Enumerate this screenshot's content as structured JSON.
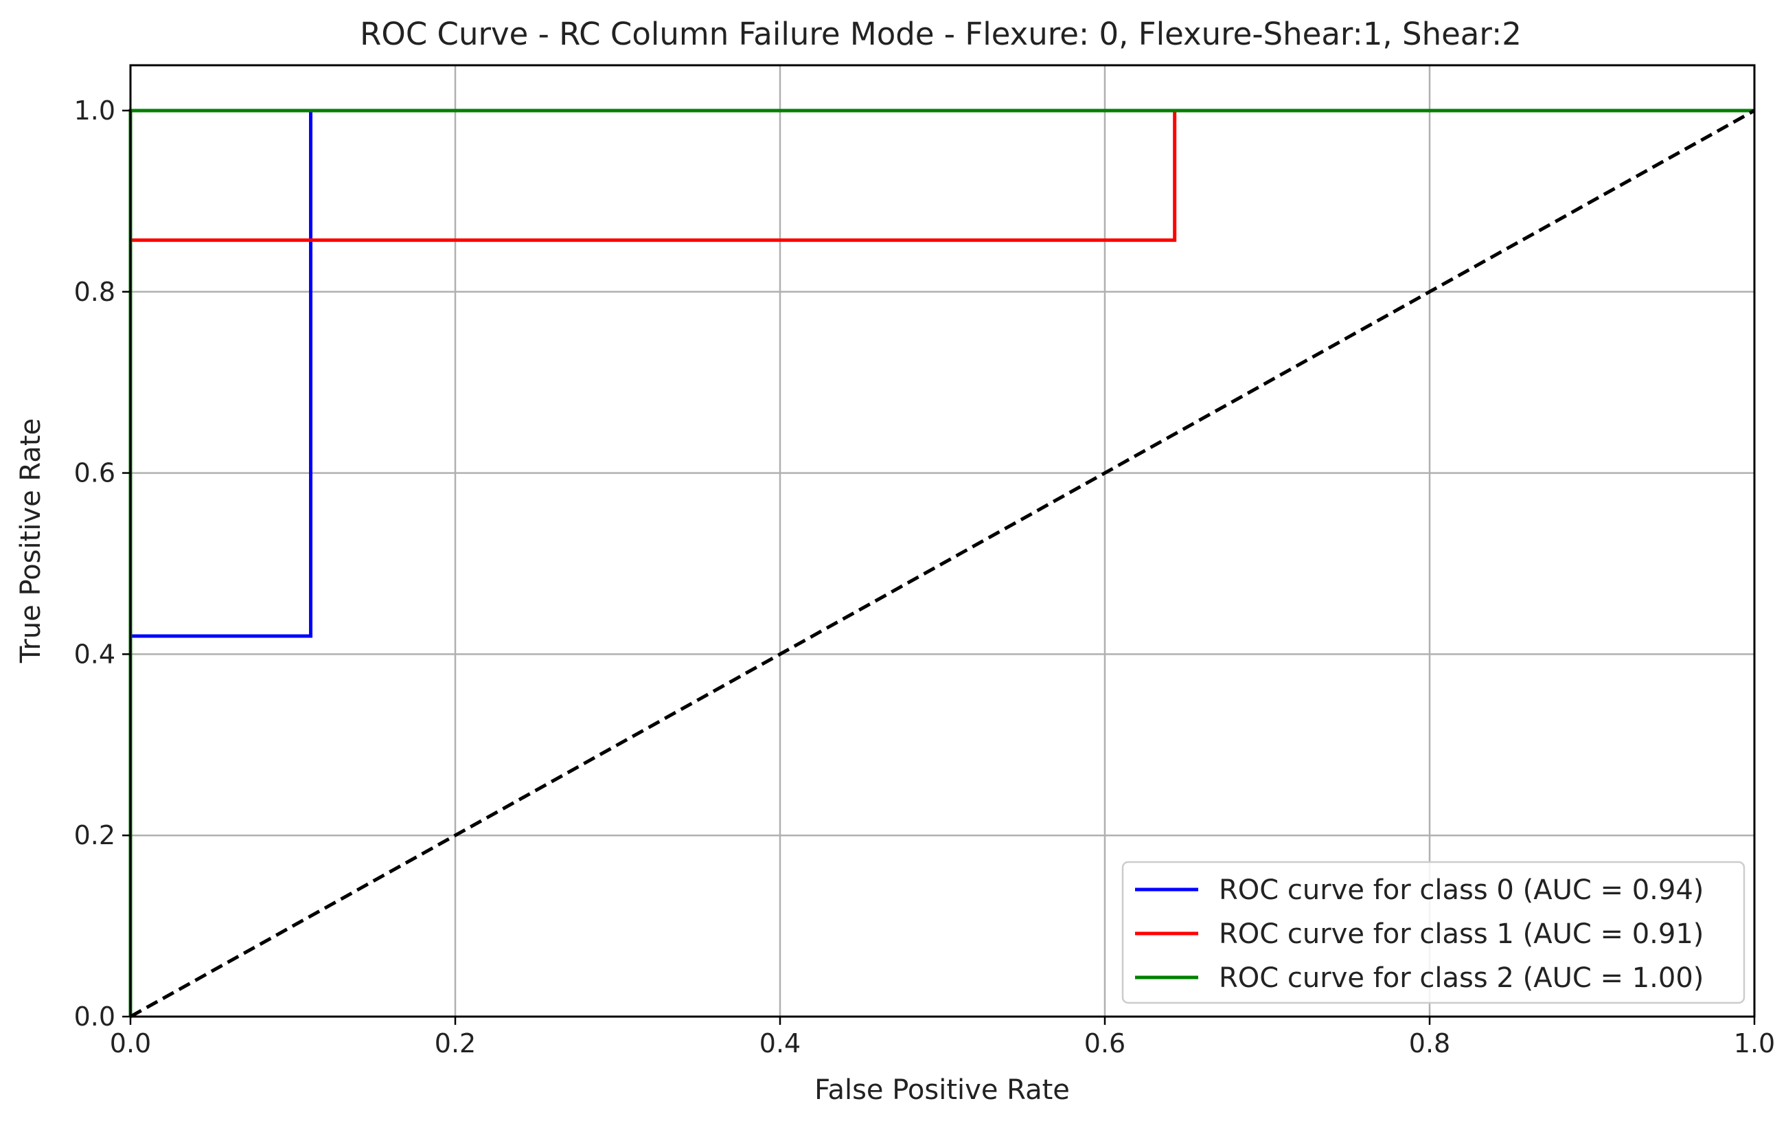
{
  "chart_data": {
    "type": "line",
    "title": "ROC Curve - RC Column Failure Mode - Flexure: 0, Flexure-Shear:1, Shear:2",
    "xlabel": "False Positive Rate",
    "ylabel": "True Positive Rate",
    "xlim": [
      0.0,
      1.0
    ],
    "ylim": [
      0.0,
      1.05
    ],
    "xticks": [
      "0.0",
      "0.2",
      "0.4",
      "0.6",
      "0.8",
      "1.0"
    ],
    "yticks": [
      "0.0",
      "0.2",
      "0.4",
      "0.6",
      "0.8",
      "1.0"
    ],
    "grid": true,
    "legend_position": "lower-right",
    "series": [
      {
        "name": "ROC curve for class 0 (AUC = 0.94)",
        "color": "#0000ff",
        "x": [
          0.0,
          0.0,
          0.111,
          0.111,
          1.0
        ],
        "y": [
          0.0,
          0.42,
          0.42,
          1.0,
          1.0
        ]
      },
      {
        "name": "ROC curve for class 1 (AUC = 0.91)",
        "color": "#ff0000",
        "x": [
          0.0,
          0.0,
          0.643,
          0.643,
          1.0
        ],
        "y": [
          0.0,
          0.857,
          0.857,
          1.0,
          1.0
        ]
      },
      {
        "name": "ROC curve for class 2 (AUC = 1.00)",
        "color": "#008000",
        "x": [
          0.0,
          0.0,
          1.0
        ],
        "y": [
          0.0,
          1.0,
          1.0
        ]
      }
    ],
    "reference_line": {
      "style": "dashed",
      "color": "#000000",
      "x": [
        0.0,
        1.0
      ],
      "y": [
        0.0,
        1.0
      ]
    }
  }
}
